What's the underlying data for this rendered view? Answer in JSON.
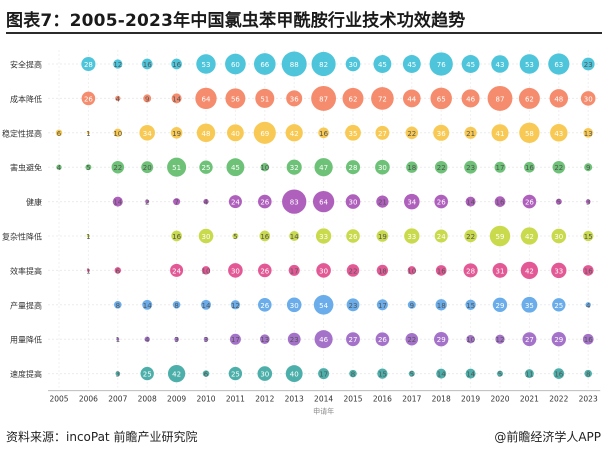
{
  "title": "图表7：2005-2023年中国氯虫苯甲酰胺行业技术功效趋势",
  "source": "资料来源：incoPat 前瞻产业研究院",
  "brand": "@前瞻经济学人APP",
  "chart_data": {
    "type": "bubble",
    "xlabel": "申请年",
    "x": [
      "2005",
      "2006",
      "2007",
      "2008",
      "2009",
      "2010",
      "2011",
      "2012",
      "2013",
      "2014",
      "2015",
      "2016",
      "2017",
      "2018",
      "2019",
      "2020",
      "2021",
      "2022",
      "2023"
    ],
    "grid": true,
    "series": [
      {
        "name": "安全提高",
        "color": "#3bbfd6",
        "values": [
          null,
          28,
          12,
          16,
          16,
          53,
          60,
          66,
          88,
          82,
          30,
          45,
          45,
          76,
          45,
          43,
          53,
          63,
          23
        ]
      },
      {
        "name": "成本降低",
        "color": "#f47f5e",
        "values": [
          null,
          26,
          4,
          9,
          14,
          64,
          56,
          51,
          36,
          87,
          62,
          72,
          44,
          65,
          46,
          87,
          62,
          48,
          30
        ]
      },
      {
        "name": "稳定性提高",
        "color": "#f7c443",
        "values": [
          6,
          1,
          10,
          34,
          19,
          48,
          40,
          69,
          42,
          16,
          35,
          27,
          22,
          36,
          21,
          41,
          58,
          43,
          13
        ]
      },
      {
        "name": "害虫避免",
        "color": "#5dbb68",
        "values": [
          4,
          5,
          22,
          20,
          51,
          25,
          45,
          10,
          32,
          47,
          28,
          30,
          18,
          22,
          23,
          17,
          16,
          22,
          9
        ]
      },
      {
        "name": "健康",
        "color": "#a64fb6",
        "values": [
          null,
          null,
          14,
          2,
          7,
          4,
          24,
          26,
          83,
          64,
          30,
          21,
          34,
          26,
          14,
          16,
          26,
          5,
          3
        ]
      },
      {
        "name": "复杂性降低",
        "color": "#c4d63a",
        "values": [
          null,
          1,
          null,
          null,
          16,
          30,
          5,
          16,
          14,
          33,
          26,
          19,
          33,
          24,
          22,
          59,
          42,
          30,
          15
        ]
      },
      {
        "name": "效率提高",
        "color": "#e0478a",
        "values": [
          null,
          1,
          6,
          null,
          24,
          10,
          30,
          26,
          17,
          30,
          22,
          18,
          10,
          16,
          28,
          31,
          42,
          33,
          16
        ]
      },
      {
        "name": "产量提高",
        "color": "#5aa4e8",
        "values": [
          null,
          null,
          8,
          14,
          8,
          14,
          12,
          26,
          30,
          54,
          23,
          17,
          9,
          18,
          15,
          29,
          35,
          25,
          4
        ]
      },
      {
        "name": "用量降低",
        "color": "#9b63c4",
        "values": [
          null,
          null,
          1,
          4,
          3,
          3,
          17,
          13,
          23,
          46,
          27,
          26,
          22,
          29,
          10,
          12,
          27,
          29,
          16
        ]
      },
      {
        "name": "速度提高",
        "color": "#3aa6a1",
        "values": [
          null,
          null,
          3,
          25,
          42,
          6,
          25,
          30,
          40,
          17,
          8,
          15,
          5,
          14,
          14,
          5,
          11,
          16,
          8
        ]
      }
    ]
  }
}
